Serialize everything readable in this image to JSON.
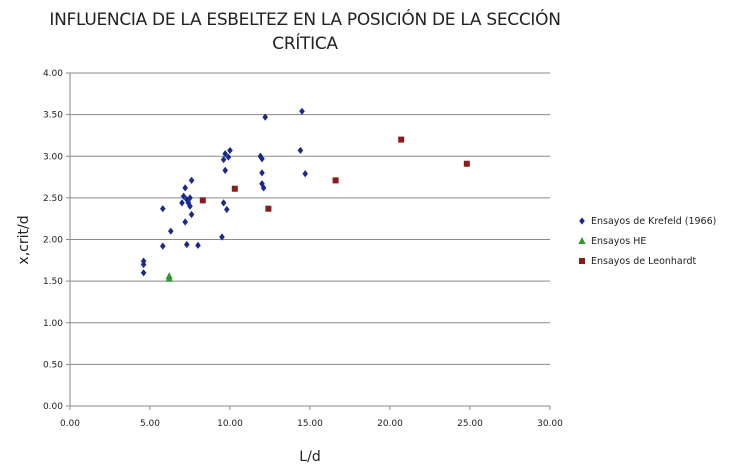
{
  "chart_data": {
    "type": "scatter",
    "title_line1": "INFLUENCIA DE LA ESBELTEZ EN LA POSICIÓN DE LA SECCIÓN",
    "title_line2": "CRÍTICA",
    "xlabel": "L/d",
    "ylabel": "x,crit/d",
    "xlim": [
      0,
      30
    ],
    "ylim": [
      0,
      4
    ],
    "x_ticks": [
      "0.00",
      "5.00",
      "10.00",
      "15.00",
      "20.00",
      "25.00",
      "30.00"
    ],
    "y_ticks": [
      "0.00",
      "0.50",
      "1.00",
      "1.50",
      "2.00",
      "2.50",
      "3.00",
      "3.50",
      "4.00"
    ],
    "grid": "horizontal",
    "legend_position": "right",
    "series": [
      {
        "name": "Ensayos de Krefeld (1966)",
        "marker": "diamond",
        "color": "#1a2a8c",
        "points": [
          [
            4.6,
            1.74
          ],
          [
            4.6,
            1.7
          ],
          [
            4.6,
            1.6
          ],
          [
            5.8,
            1.92
          ],
          [
            5.8,
            2.37
          ],
          [
            6.3,
            2.1
          ],
          [
            7.0,
            2.44
          ],
          [
            7.1,
            2.52
          ],
          [
            7.2,
            2.62
          ],
          [
            7.2,
            2.21
          ],
          [
            7.3,
            2.48
          ],
          [
            7.3,
            1.94
          ],
          [
            7.4,
            2.44
          ],
          [
            7.5,
            2.4
          ],
          [
            7.5,
            2.5
          ],
          [
            7.6,
            2.3
          ],
          [
            7.6,
            2.71
          ],
          [
            8.0,
            1.93
          ],
          [
            9.5,
            2.03
          ],
          [
            9.6,
            2.44
          ],
          [
            9.6,
            2.96
          ],
          [
            9.7,
            2.83
          ],
          [
            9.7,
            3.03
          ],
          [
            9.8,
            2.36
          ],
          [
            9.9,
            2.99
          ],
          [
            10.0,
            3.07
          ],
          [
            11.9,
            3.0
          ],
          [
            12.0,
            2.97
          ],
          [
            12.0,
            2.8
          ],
          [
            12.0,
            2.67
          ],
          [
            12.1,
            2.62
          ],
          [
            12.2,
            3.47
          ],
          [
            14.4,
            3.07
          ],
          [
            14.5,
            3.54
          ],
          [
            14.7,
            2.79
          ]
        ]
      },
      {
        "name": "Ensayos HE",
        "marker": "triangle",
        "color": "#2a9a2a",
        "points": [
          [
            6.2,
            1.53
          ],
          [
            6.2,
            1.56
          ]
        ]
      },
      {
        "name": "Ensayos de Leonhardt",
        "marker": "square",
        "color": "#8b1a1a",
        "points": [
          [
            8.3,
            2.47
          ],
          [
            10.3,
            2.61
          ],
          [
            12.4,
            2.37
          ],
          [
            16.6,
            2.71
          ],
          [
            20.7,
            3.2
          ],
          [
            24.8,
            2.91
          ]
        ]
      }
    ]
  }
}
